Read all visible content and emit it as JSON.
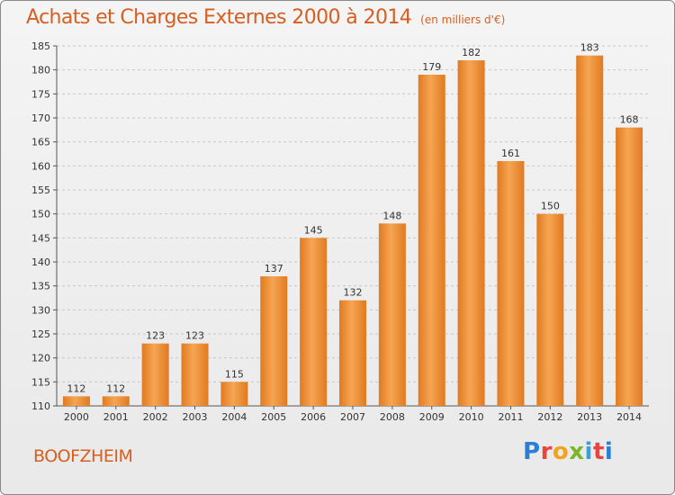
{
  "title": "Achats et Charges Externes 2000 à 2014",
  "unit_note": "(en milliers d'€)",
  "city": "BOOFZHEIM",
  "logo": {
    "letters": [
      "P",
      "r",
      "o",
      "x",
      "i",
      "t",
      "i"
    ]
  },
  "colors": {
    "title": "#d85e20",
    "bar_light": "#f6a552",
    "bar_dark": "#e07a22",
    "grid": "#c8c8c8"
  },
  "chart_data": {
    "type": "bar",
    "categories": [
      "2000",
      "2001",
      "2002",
      "2003",
      "2004",
      "2005",
      "2006",
      "2007",
      "2008",
      "2009",
      "2010",
      "2011",
      "2012",
      "2013",
      "2014"
    ],
    "values": [
      112,
      112,
      123,
      123,
      115,
      137,
      145,
      132,
      148,
      179,
      182,
      161,
      150,
      183,
      168
    ],
    "ylim": [
      110,
      185
    ],
    "yticks": [
      110,
      115,
      120,
      125,
      130,
      135,
      140,
      145,
      150,
      155,
      160,
      165,
      170,
      175,
      180,
      185
    ],
    "grid": "horizontal dashed",
    "title": "Achats et Charges Externes 2000 à 2014",
    "xlabel": "",
    "ylabel": ""
  }
}
